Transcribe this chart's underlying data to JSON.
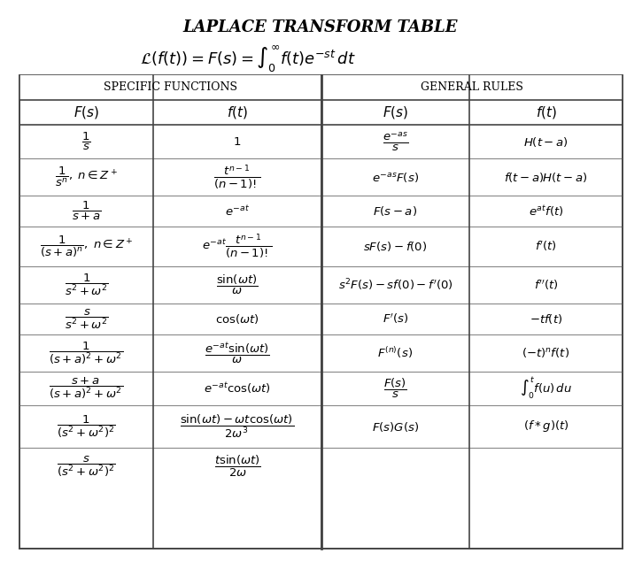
{
  "title": "LAPLACE TRANSFORM TABLE",
  "formula": "$\\mathcal{L}(f(t)) = F(s) = \\int_0^{\\infty} f(t)e^{-st}\\, dt$",
  "col_headers": [
    "SPECIFIC FUNCTIONS",
    "GENERAL RULES"
  ],
  "sub_headers": [
    "$F(s)$",
    "$f(t)$",
    "$F(s)$",
    "$f(t)$"
  ],
  "specific_rows": [
    [
      "$\\dfrac{1}{s}$",
      "$1$"
    ],
    [
      "$\\dfrac{1}{s^n},\\; n \\in Z^+$",
      "$\\dfrac{t^{n-1}}{(n-1)!}$"
    ],
    [
      "$\\dfrac{1}{s+a}$",
      "$e^{-at}$"
    ],
    [
      "$\\dfrac{1}{(s+a)^n},\\; n \\in Z^+$",
      "$e^{-at}\\dfrac{t^{n-1}}{(n-1)!}$"
    ],
    [
      "$\\dfrac{1}{s^2+\\omega^2}$",
      "$\\dfrac{\\sin(\\omega t)}{\\omega}$"
    ],
    [
      "$\\dfrac{s}{s^2+\\omega^2}$",
      "$\\cos(\\omega t)$"
    ],
    [
      "$\\dfrac{1}{(s+a)^2+\\omega^2}$",
      "$\\dfrac{e^{-at}\\sin(\\omega t)}{\\omega}$"
    ],
    [
      "$\\dfrac{s+a}{(s+a)^2+\\omega^2}$",
      "$e^{-at}\\cos(\\omega t)$"
    ],
    [
      "$\\dfrac{1}{(s^2+\\omega^2)^2}$",
      "$\\dfrac{\\sin(\\omega t)-\\omega t\\cos(\\omega t)}{2\\omega^3}$"
    ],
    [
      "$\\dfrac{s}{(s^2+\\omega^2)^2}$",
      "$\\dfrac{t\\sin(\\omega t)}{2\\omega}$"
    ]
  ],
  "general_rows": [
    [
      "$\\dfrac{e^{-as}}{s}$",
      "$H(t-a)$"
    ],
    [
      "$e^{-as}F(s)$",
      "$f(t-a)H(t-a)$"
    ],
    [
      "$F(s-a)$",
      "$e^{at}f(t)$"
    ],
    [
      "$sF(s)-f(0)$",
      "$f^{\\prime}(t)$"
    ],
    [
      "$s^2F(s)-sf(0)-f^{\\prime}(0)$",
      "$f^{\\prime\\prime}(t)$"
    ],
    [
      "$F^{\\prime}(s)$",
      "$-tf(t)$"
    ],
    [
      "$F^{(n)}(s)$",
      "$(-t)^n f(t)$"
    ],
    [
      "$\\dfrac{F(s)}{s}$",
      "$\\int_0^t f(u)\\, du$"
    ],
    [
      "$F(s)G(s)$",
      "$(f*g)(t)$"
    ],
    [
      "",
      ""
    ]
  ],
  "bg_color": "#ffffff",
  "text_color": "#000000",
  "border_color": "#000000",
  "header_bg": "#ffffff"
}
